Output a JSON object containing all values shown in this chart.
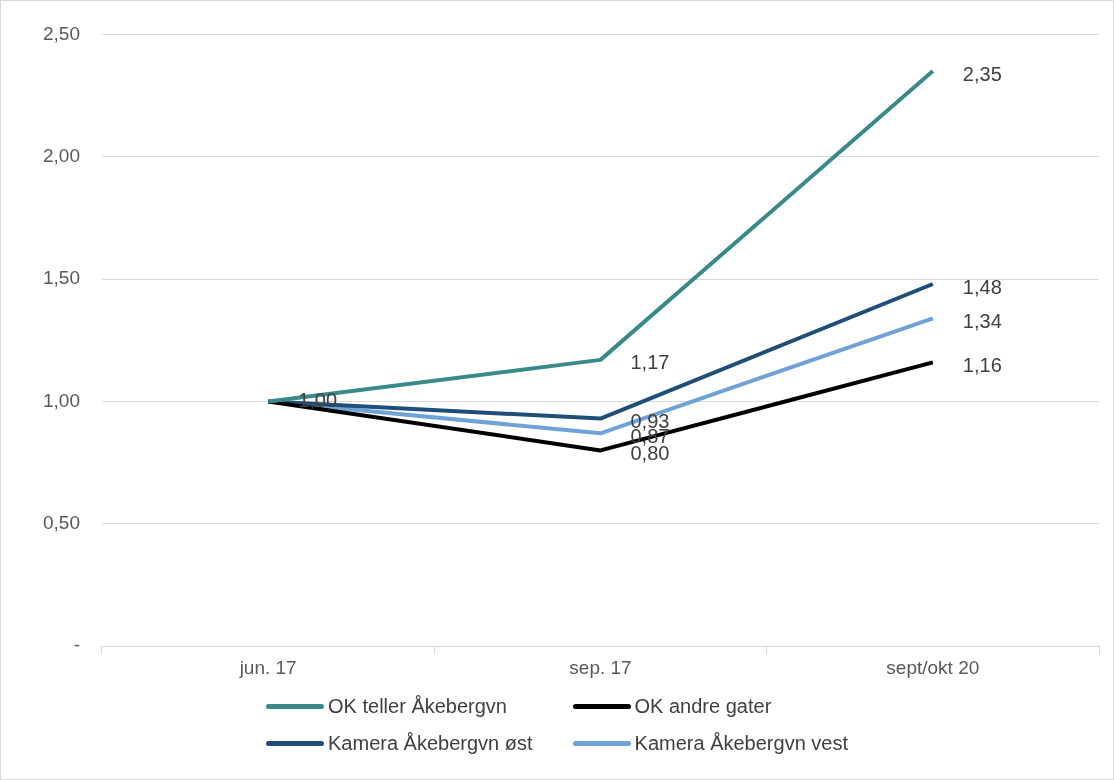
{
  "chart_data": {
    "type": "line",
    "categories": [
      "jun. 17",
      "sep. 17",
      "sept/okt 20"
    ],
    "series": [
      {
        "name": "OK teller Åkebergvn",
        "color": "#3a8a8a",
        "values": [
          1.0,
          1.17,
          2.35
        ],
        "value_labels": [
          "1,00",
          "1,17",
          "2,35"
        ]
      },
      {
        "name": "OK andre gater",
        "color": "#000000",
        "values": [
          1.0,
          0.8,
          1.16
        ],
        "value_labels": [
          null,
          "0,80",
          "1,16"
        ]
      },
      {
        "name": "Kamera Åkebergvn øst",
        "color": "#1f4e79",
        "values": [
          1.0,
          0.93,
          1.48
        ],
        "value_labels": [
          null,
          "0,93",
          "1,48"
        ]
      },
      {
        "name": "Kamera Åkebergvn vest",
        "color": "#6fa3d8",
        "values": [
          1.0,
          0.87,
          1.34
        ],
        "value_labels": [
          null,
          "0,87",
          "1,34"
        ]
      }
    ],
    "ylim": [
      0,
      2.5
    ],
    "yticks": [
      {
        "value": 0,
        "label": "-"
      },
      {
        "value": 0.5,
        "label": "0,50"
      },
      {
        "value": 1,
        "label": "1,00"
      },
      {
        "value": 1.5,
        "label": "1,50"
      },
      {
        "value": 2,
        "label": "2,00"
      },
      {
        "value": 2.5,
        "label": "2,50"
      }
    ],
    "grid": "y",
    "legend": "bottom",
    "marker": "none",
    "line_style": "solid"
  }
}
